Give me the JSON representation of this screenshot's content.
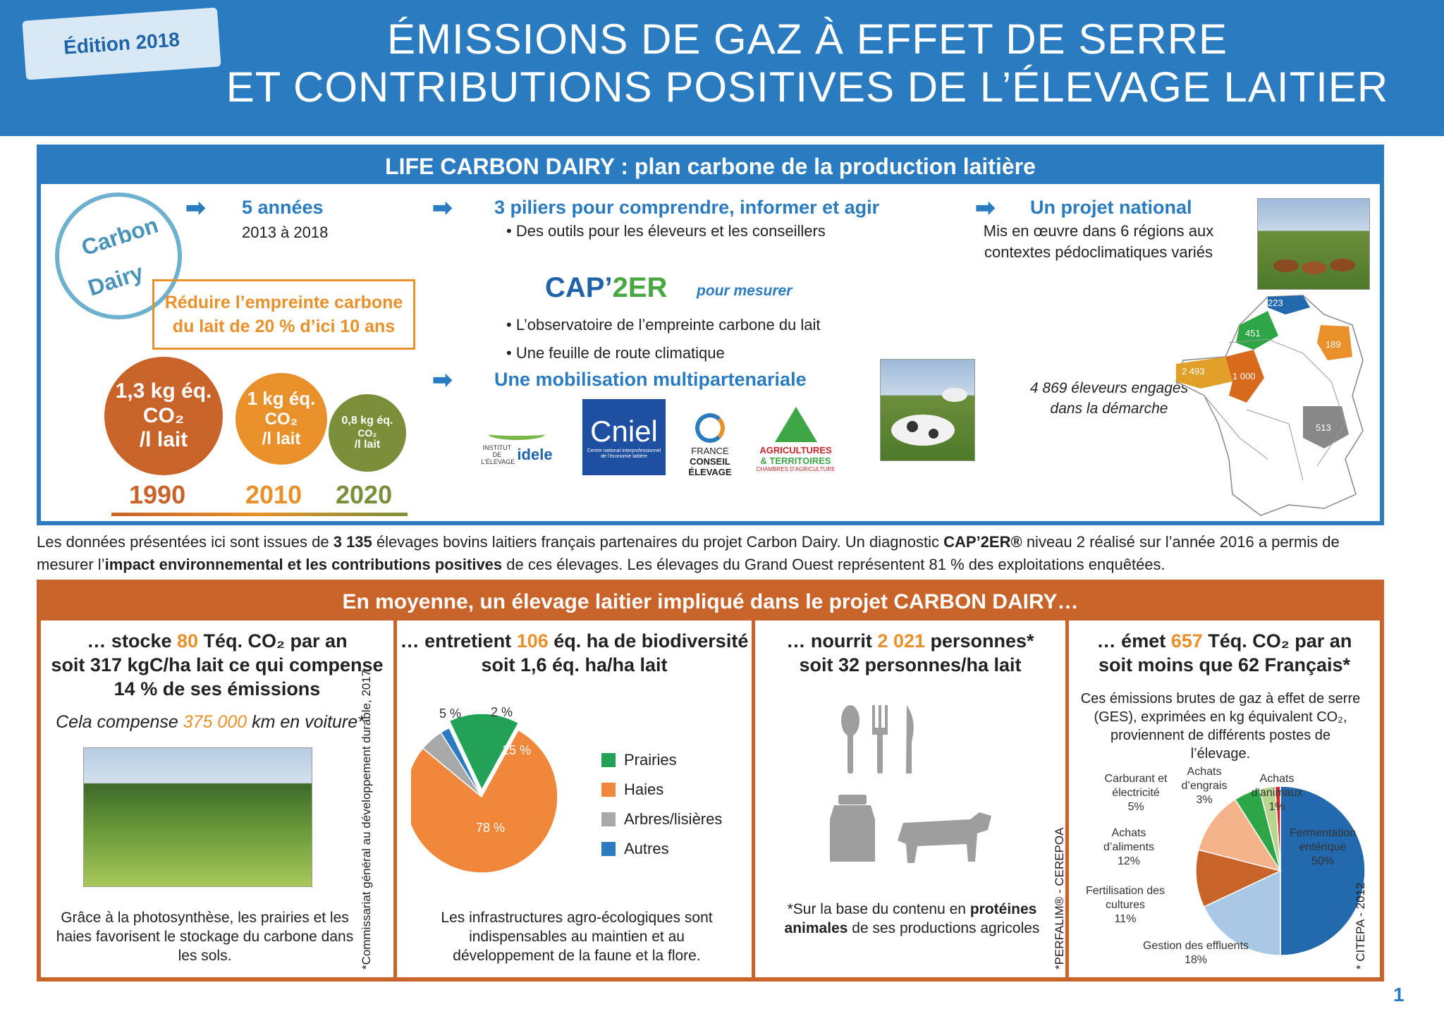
{
  "header": {
    "edition": "Édition 2018",
    "title_line1": "ÉMISSIONS DE GAZ À EFFET DE SERRE",
    "title_line2": "ET CONTRIBUTIONS POSITIVES DE L’ÉLEVAGE LAITIER"
  },
  "life": {
    "heading": "LIFE CARBON DAIRY : plan carbone de la production laitière",
    "stamp_line1": "Carbon",
    "stamp_line2": "Dairy",
    "years_title": "5 années",
    "years_text": "2013 à 2018",
    "objective": "Réduire l’empreinte carbone du lait de 20 % d’ici 10 ans",
    "targets": [
      {
        "value": "1,3 kg éq.",
        "unit": "CO₂",
        "per": "/l lait",
        "year": "1990",
        "color": "#c8632a"
      },
      {
        "value": "1 kg éq.",
        "unit": "CO₂",
        "per": "/l lait",
        "year": "2010",
        "color": "#e8902a"
      },
      {
        "value": "0,8 kg éq.",
        "unit": "CO₂",
        "per": "/l lait",
        "year": "2020",
        "color": "#7b8f3a"
      }
    ],
    "pillars_title": "3 piliers pour comprendre, informer et agir",
    "pillar1": "• Des outils pour les éleveurs et les conseillers",
    "cap_a": "CAP’",
    "cap_b": "2ER",
    "cap_measure": "pour mesurer",
    "pillar2": "• L’observatoire de l’empreinte carbone du lait",
    "pillar3": "• Une feuille de route climatique",
    "mobil_title": "Une mobilisation multipartenariale",
    "partners": {
      "idele_small": "INSTITUT DE L’ÉLEVAGE",
      "idele": "idele",
      "cniel": "Cniel",
      "cniel_sub": "Centre national interprofessionnel de l’économie laitière",
      "fce_1": "FRANCE",
      "fce_2": "CONSEIL ÉLEVAGE",
      "agri_1": "AGRICULTURES",
      "agri_2": "& TERRITOIRES",
      "agri_3": "CHAMBRES D’AGRICULTURE"
    },
    "national_title": "Un projet national",
    "national_text": "Mis en œuvre dans 6 régions aux contextes pédoclimatiques variés",
    "breeders": "4 869 éleveurs engagés dans la démarche",
    "map_regions": [
      "223",
      "451",
      "189",
      "2 493",
      "1 000",
      "513"
    ]
  },
  "intro": {
    "p1": "Les données présentées ici sont issues de ",
    "b1": "3 135",
    "p2": " élevages bovins laitiers français partenaires du projet Carbon Dairy. Un diagnostic ",
    "b2": "CAP’2ER®",
    "p3": " niveau 2 réalisé sur l’année 2016 a permis de mesurer l’",
    "b3": "impact environnemental et les contributions positives",
    "p4": " de ces élevages. Les élevages du Grand Ouest représentent 81 % des exploitations enquêtées."
  },
  "moyenne": {
    "heading": "En moyenne, un élevage laitier impliqué dans le projet CARBON DAIRY…",
    "c1": {
      "h_a": "… stocke ",
      "h_num": "80",
      "h_b": " Téq. CO₂ par an",
      "h2": "soit 317 kgC/ha lait ce qui compense",
      "h3": "14 % de ses émissions",
      "sub_a": "Cela compense ",
      "sub_num": "375 000",
      "sub_b": " km en voiture*",
      "text": "Grâce à la photosynthèse, les prairies et les haies favorisent le stockage du carbone dans les sols.",
      "note": "*Commissariat général au développement durable, 2017"
    },
    "c2": {
      "h_a": "… entretient ",
      "h_num": "106",
      "h_b": " éq. ha de biodiversité",
      "h2": "soit 1,6 éq. ha/ha lait",
      "text": "Les infrastructures agro-écologiques sont indispensables au maintien et au développement de la faune et la flore."
    },
    "c3": {
      "h_a": "… nourrit ",
      "h_num": "2 021",
      "h_b": " personnes*",
      "h2": "soit 32 personnes/ha lait",
      "note_a": "*Sur la base du contenu en ",
      "note_b": "protéines animales",
      "note_c": " de ses productions agricoles",
      "source": "*PERFALIM® - CEREPOA"
    },
    "c4": {
      "h_a": "… émet ",
      "h_num": "657",
      "h_b": " Téq. CO₂ par an",
      "h2": "soit moins que 62 Français*",
      "desc": "Ces émissions brutes de gaz à effet de serre (GES), exprimées en kg équivalent CO₂, proviennent de différents postes de l’élevage.",
      "source": "* CITEPA - 2012"
    }
  },
  "chart_data": [
    {
      "type": "pie",
      "title": "",
      "slices": [
        {
          "label": "Prairies",
          "value": 15,
          "color": "#21a256"
        },
        {
          "label": "Haies",
          "value": 78,
          "color": "#f0873a"
        },
        {
          "label": "Arbres/lisières",
          "value": 5,
          "color": "#a8a8a8"
        },
        {
          "label": "Autres",
          "value": 2,
          "color": "#2a7bc0"
        }
      ],
      "data_labels": [
        "15 %",
        "78 %",
        "5 %",
        "2 %"
      ]
    },
    {
      "type": "pie",
      "title": "",
      "slices": [
        {
          "label": "Fermentation entérique",
          "value": 50,
          "color": "#2369ad",
          "value_label": "50%"
        },
        {
          "label": "Gestion des effluents",
          "value": 18,
          "color": "#a9c8e6",
          "value_label": "18%"
        },
        {
          "label": "Fertilisation des cultures",
          "value": 11,
          "color": "#c8632a",
          "value_label": "11%"
        },
        {
          "label": "Achats d’aliments",
          "value": 12,
          "color": "#f4b38a",
          "value_label": "12%"
        },
        {
          "label": "Carburant et électricité",
          "value": 5,
          "color": "#2ea646",
          "value_label": "5%"
        },
        {
          "label": "Achats d’engrais",
          "value": 3,
          "color": "#b9d68f",
          "value_label": "3%"
        },
        {
          "label": "Achats d’animaux",
          "value": 1,
          "color": "#d8262b",
          "value_label": "1%"
        }
      ]
    }
  ],
  "page_number": "1"
}
